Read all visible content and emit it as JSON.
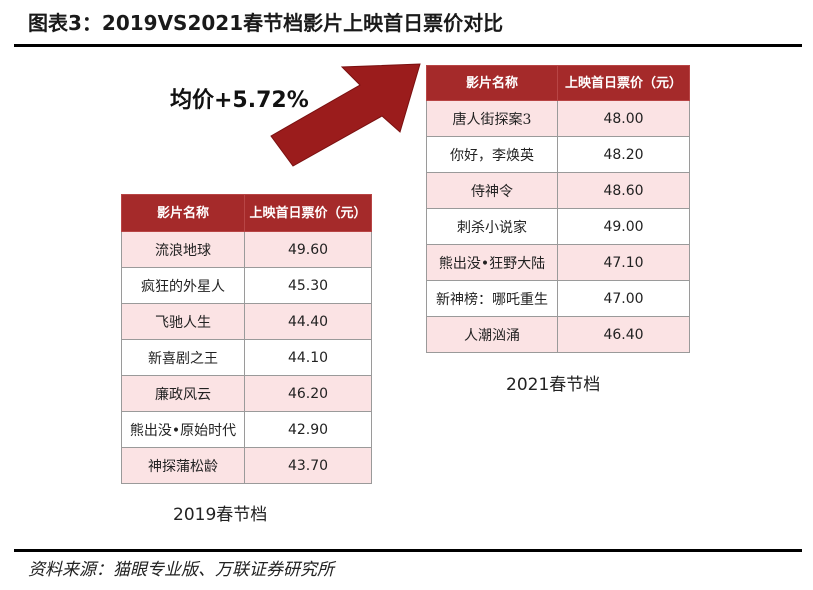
{
  "figure": {
    "title": "图表3：2019VS2021春节档影片上映首日票价对比",
    "source": "资料来源：猫眼专业版、万联证券研究所"
  },
  "annotation": {
    "average_change": "均价+5.72%",
    "arrow_color": "#9b1c1c"
  },
  "colors": {
    "header_bg": "#a52a2a",
    "row_pink": "#fbe3e4"
  },
  "table_2019": {
    "caption": "2019春节档",
    "headers": [
      "影片名称",
      "上映首日票价（元）"
    ],
    "rows": [
      {
        "name": "流浪地球",
        "price": "49.60"
      },
      {
        "name": "疯狂的外星人",
        "price": "45.30"
      },
      {
        "name": "飞驰人生",
        "price": "44.40"
      },
      {
        "name": "新喜剧之王",
        "price": "44.10"
      },
      {
        "name": "廉政风云",
        "price": "46.20"
      },
      {
        "name": "熊出没•原始时代",
        "price": "42.90"
      },
      {
        "name": "神探蒲松龄",
        "price": "43.70"
      }
    ]
  },
  "table_2021": {
    "caption": "2021春节档",
    "headers": [
      "影片名称",
      "上映首日票价（元）"
    ],
    "rows": [
      {
        "name": "唐人街探案3",
        "price": "48.00"
      },
      {
        "name": "你好，李焕英",
        "price": "48.20"
      },
      {
        "name": "侍神令",
        "price": "48.60"
      },
      {
        "name": "刺杀小说家",
        "price": "49.00"
      },
      {
        "name": "熊出没•狂野大陆",
        "price": "47.10"
      },
      {
        "name": "新神榜：哪吒重生",
        "price": "47.00"
      },
      {
        "name": "人潮汹涌",
        "price": "46.40"
      }
    ]
  }
}
